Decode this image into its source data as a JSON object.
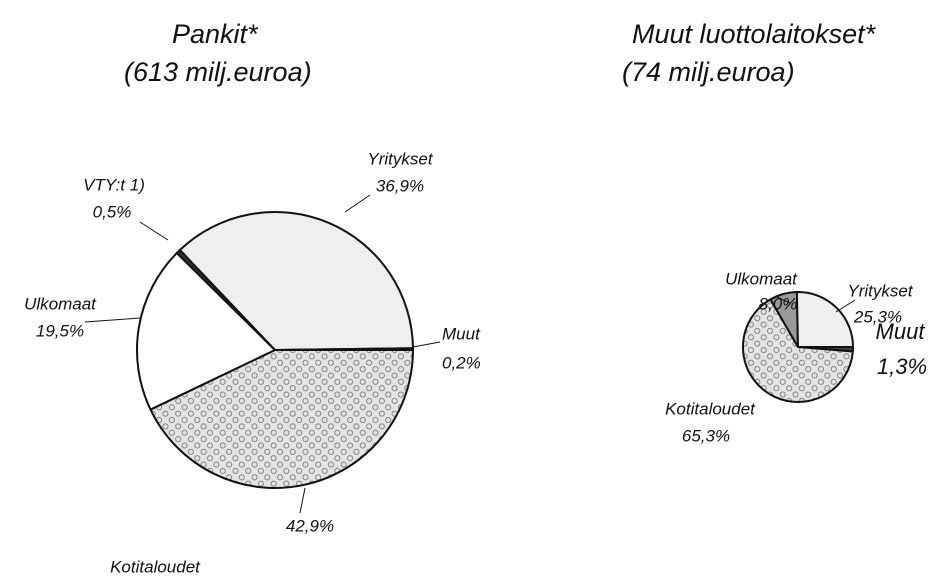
{
  "chart_data": [
    {
      "type": "pie",
      "title": "Pankit*",
      "subtitle": "(613 milj.euroa)",
      "categories": [
        "Kotitaloudet",
        "Ulkomaat",
        "VTY:t 1)",
        "Yritykset",
        "Muut"
      ],
      "values": [
        42.9,
        19.5,
        0.5,
        36.9,
        0.2
      ],
      "value_labels": [
        "42,9%",
        "19,5%",
        "0,5%",
        "36,9%",
        "0,2%"
      ],
      "colors": [
        "#d4d4d4",
        "#ffffff",
        "#333333",
        "#efefef",
        "#444444"
      ]
    },
    {
      "type": "pie",
      "title": "Muut luottolaitokset*",
      "subtitle": "(74 milj.euroa)",
      "categories": [
        "Muut",
        "Kotitaloudet",
        "Ulkomaat",
        "Yritykset"
      ],
      "values": [
        1.3,
        65.3,
        8.0,
        25.3
      ],
      "value_labels": [
        "1,3%",
        "65,3%",
        "8,0%",
        "25,3%"
      ],
      "colors": [
        "#444444",
        "#d4d4d4",
        "#999999",
        "#efefef"
      ]
    }
  ]
}
